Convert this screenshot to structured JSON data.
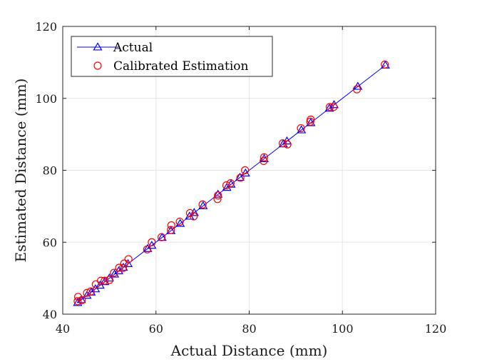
{
  "chart_data": {
    "type": "line",
    "title": "",
    "xlabel": "Actual Distance (mm)",
    "ylabel": "Estimated Distance (mm)",
    "xlim": [
      40,
      120
    ],
    "ylim": [
      40,
      120
    ],
    "xticks": [
      40,
      60,
      80,
      100,
      120
    ],
    "yticks": [
      40,
      60,
      80,
      100,
      120
    ],
    "grid": true,
    "legend_position": "top-left",
    "series": [
      {
        "name": "Actual",
        "style": "line-triangle",
        "color": "#0000ff",
        "x": [
          43.2,
          44.0,
          45.2,
          46.1,
          47.0,
          48.0,
          49.0,
          50.0,
          51.1,
          52.0,
          53.0,
          54.0,
          58.2,
          59.1,
          61.3,
          63.2,
          65.2,
          67.2,
          68.2,
          70.1,
          73.3,
          75.2,
          76.1,
          78.0,
          79.2,
          83.2,
          87.3,
          88.1,
          91.2,
          93.2,
          97.2,
          98.2,
          103.3,
          109.2
        ],
        "y": [
          43.2,
          44.0,
          45.2,
          46.1,
          47.0,
          48.0,
          49.0,
          50.0,
          51.1,
          52.0,
          53.0,
          54.0,
          58.2,
          59.1,
          61.3,
          63.2,
          65.2,
          67.2,
          68.2,
          70.1,
          73.3,
          75.2,
          76.1,
          78.0,
          79.2,
          83.2,
          87.3,
          88.1,
          91.2,
          93.2,
          97.2,
          98.2,
          103.3,
          109.2
        ]
      },
      {
        "name": "Calibrated Estimation",
        "style": "circle",
        "color": "#ff0000",
        "x": [
          43.2,
          43.3,
          44.1,
          45.2,
          46.0,
          47.1,
          48.2,
          49.0,
          50.0,
          51.0,
          52.1,
          52.9,
          53.2,
          54.1,
          58.1,
          59.1,
          61.2,
          63.2,
          63.3,
          65.1,
          67.3,
          68.1,
          70.0,
          73.2,
          73.3,
          75.1,
          76.0,
          78.1,
          79.1,
          83.1,
          83.2,
          87.2,
          88.2,
          91.1,
          93.1,
          93.2,
          97.3,
          98.1,
          103.1,
          109.1
        ],
        "y": [
          43.6,
          44.8,
          43.9,
          45.9,
          46.3,
          48.3,
          49.3,
          49.3,
          49.5,
          51.5,
          52.9,
          52.8,
          54.1,
          55.3,
          58.0,
          60.0,
          61.4,
          63.4,
          64.7,
          65.7,
          68.1,
          67.2,
          70.5,
          72.0,
          73.0,
          75.8,
          76.4,
          77.9,
          80.0,
          82.6,
          83.6,
          87.5,
          87.2,
          91.7,
          93.5,
          94.1,
          97.6,
          97.6,
          102.5,
          109.4
        ]
      }
    ]
  }
}
